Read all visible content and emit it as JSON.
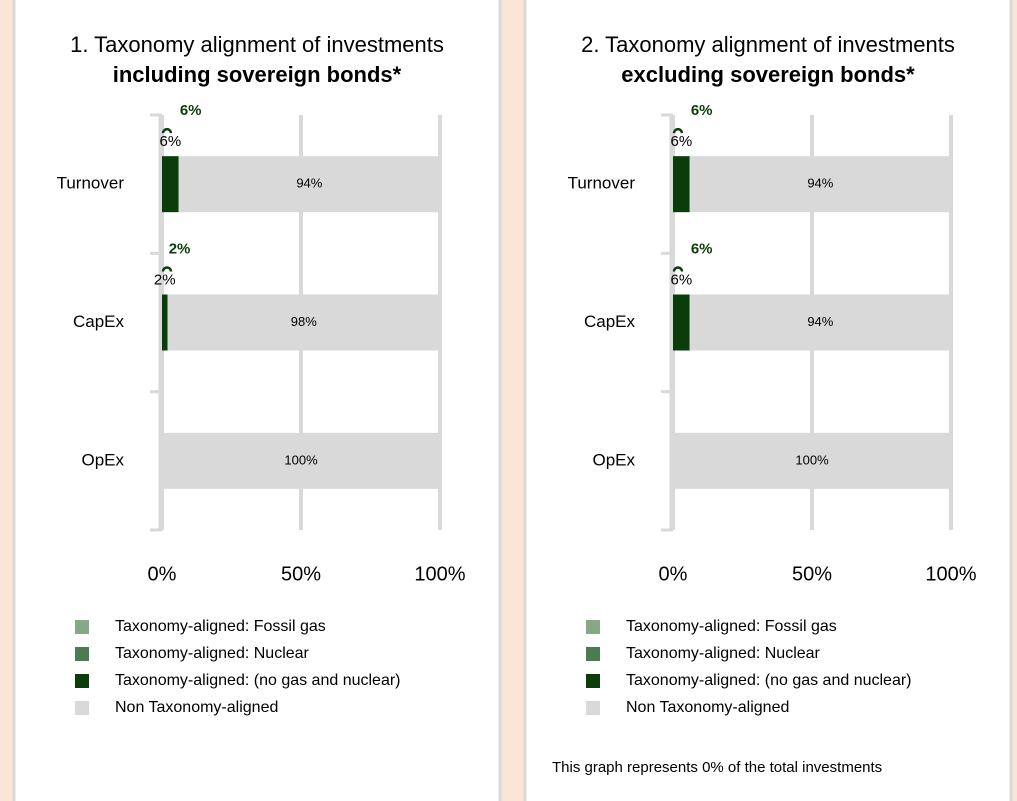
{
  "chart_data": [
    {
      "type": "bar",
      "orientation": "horizontal",
      "stacked": true,
      "title": "1. Taxonomy alignment of investments",
      "subtitle": "including sovereign bonds*",
      "categories": [
        "Turnover",
        "CapEx",
        "OpEx"
      ],
      "series": [
        {
          "name": "Taxonomy-aligned: Fossil gas",
          "color": "#87a887",
          "values": [
            0,
            0,
            0
          ]
        },
        {
          "name": "Taxonomy-aligned: Nuclear",
          "color": "#4b7a53",
          "values": [
            0,
            0,
            0
          ]
        },
        {
          "name": "Taxonomy-aligned: (no gas and nuclear)",
          "color": "#0b3d0b",
          "values": [
            6,
            2,
            0
          ],
          "value_labels": [
            "6%",
            "2%",
            null
          ],
          "total_labels": [
            "6%",
            "2%",
            null
          ]
        },
        {
          "name": "Non Taxonomy-aligned",
          "color": "#d9d9d9",
          "values": [
            94,
            98,
            100
          ],
          "value_labels": [
            "94%",
            "98%",
            "100%"
          ]
        }
      ],
      "xlim": [
        0,
        100
      ],
      "xticks": [
        {
          "value": 0,
          "label": "0%"
        },
        {
          "value": 50,
          "label": "50%"
        },
        {
          "value": 100,
          "label": "100%"
        }
      ],
      "grid": true,
      "legend": "bottom"
    },
    {
      "type": "bar",
      "orientation": "horizontal",
      "stacked": true,
      "title": "2. Taxonomy alignment of investments",
      "subtitle": "excluding sovereign bonds*",
      "categories": [
        "Turnover",
        "CapEx",
        "OpEx"
      ],
      "series": [
        {
          "name": "Taxonomy-aligned: Fossil gas",
          "color": "#87a887",
          "values": [
            0,
            0,
            0
          ]
        },
        {
          "name": "Taxonomy-aligned: Nuclear",
          "color": "#4b7a53",
          "values": [
            0,
            0,
            0
          ]
        },
        {
          "name": "Taxonomy-aligned: (no gas and nuclear)",
          "color": "#0b3d0b",
          "values": [
            6,
            6,
            0
          ],
          "value_labels": [
            "6%",
            "6%",
            null
          ],
          "total_labels": [
            "6%",
            "6%",
            null
          ]
        },
        {
          "name": "Non Taxonomy-aligned",
          "color": "#d9d9d9",
          "values": [
            94,
            94,
            100
          ],
          "value_labels": [
            "94%",
            "94%",
            "100%"
          ]
        }
      ],
      "xlim": [
        0,
        100
      ],
      "xticks": [
        {
          "value": 0,
          "label": "0%"
        },
        {
          "value": 50,
          "label": "50%"
        },
        {
          "value": 100,
          "label": "100%"
        }
      ],
      "grid": true,
      "legend": "bottom",
      "note": "This graph represents 0% of the total investments"
    }
  ]
}
